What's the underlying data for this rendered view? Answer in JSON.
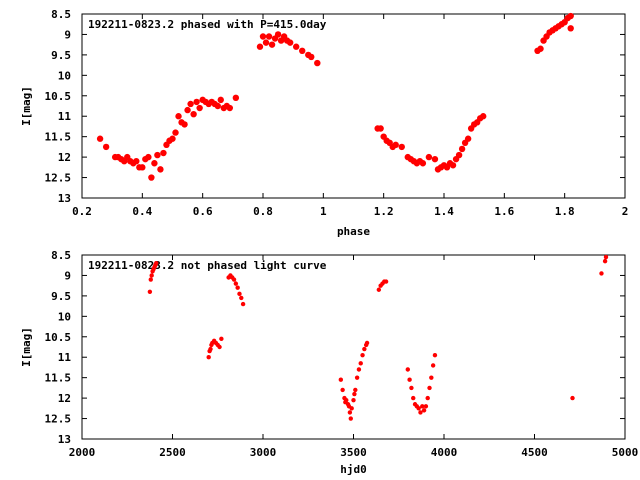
{
  "chart_data": [
    {
      "type": "scatter",
      "title": "192211-0823.2 phased with P=415.0day",
      "xlabel": "phase",
      "ylabel": "I[mag]",
      "xlim": [
        0.2,
        2.0
      ],
      "ylim": [
        8.5,
        13
      ],
      "y_inverted": true,
      "grid": false,
      "color": "#ff0000",
      "x_ticks": [
        "0.2",
        "0.4",
        "0.6",
        "0.8",
        "1",
        "1.2",
        "1.4",
        "1.6",
        "1.8",
        "2"
      ],
      "y_ticks": [
        "8.5",
        "9",
        "9.5",
        "10",
        "10.5",
        "11",
        "11.5",
        "12",
        "12.5",
        "13"
      ],
      "points": [
        [
          0.26,
          11.55
        ],
        [
          0.28,
          11.75
        ],
        [
          0.31,
          12.0
        ],
        [
          0.32,
          12.0
        ],
        [
          0.33,
          12.05
        ],
        [
          0.34,
          12.1
        ],
        [
          0.35,
          12.0
        ],
        [
          0.36,
          12.1
        ],
        [
          0.37,
          12.15
        ],
        [
          0.38,
          12.1
        ],
        [
          0.39,
          12.25
        ],
        [
          0.4,
          12.25
        ],
        [
          0.41,
          12.05
        ],
        [
          0.42,
          12.0
        ],
        [
          0.43,
          12.5
        ],
        [
          0.44,
          12.15
        ],
        [
          0.45,
          11.95
        ],
        [
          0.46,
          12.3
        ],
        [
          0.47,
          11.9
        ],
        [
          0.48,
          11.7
        ],
        [
          0.49,
          11.6
        ],
        [
          0.5,
          11.55
        ],
        [
          0.51,
          11.4
        ],
        [
          0.52,
          11.0
        ],
        [
          0.53,
          11.15
        ],
        [
          0.54,
          11.2
        ],
        [
          0.55,
          10.85
        ],
        [
          0.56,
          10.7
        ],
        [
          0.57,
          10.95
        ],
        [
          0.58,
          10.65
        ],
        [
          0.59,
          10.8
        ],
        [
          0.6,
          10.6
        ],
        [
          0.61,
          10.65
        ],
        [
          0.62,
          10.7
        ],
        [
          0.63,
          10.65
        ],
        [
          0.64,
          10.7
        ],
        [
          0.65,
          10.75
        ],
        [
          0.66,
          10.6
        ],
        [
          0.67,
          10.8
        ],
        [
          0.68,
          10.75
        ],
        [
          0.69,
          10.8
        ],
        [
          0.71,
          10.55
        ],
        [
          0.79,
          9.3
        ],
        [
          0.8,
          9.05
        ],
        [
          0.81,
          9.2
        ],
        [
          0.82,
          9.05
        ],
        [
          0.83,
          9.25
        ],
        [
          0.84,
          9.1
        ],
        [
          0.85,
          9.0
        ],
        [
          0.86,
          9.15
        ],
        [
          0.87,
          9.05
        ],
        [
          0.88,
          9.15
        ],
        [
          0.89,
          9.2
        ],
        [
          0.91,
          9.3
        ],
        [
          0.93,
          9.4
        ],
        [
          0.95,
          9.5
        ],
        [
          0.96,
          9.55
        ],
        [
          0.98,
          9.7
        ],
        [
          1.18,
          11.3
        ],
        [
          1.19,
          11.3
        ],
        [
          1.2,
          11.5
        ],
        [
          1.21,
          11.6
        ],
        [
          1.22,
          11.65
        ],
        [
          1.23,
          11.75
        ],
        [
          1.24,
          11.7
        ],
        [
          1.26,
          11.75
        ],
        [
          1.28,
          12.0
        ],
        [
          1.29,
          12.05
        ],
        [
          1.3,
          12.1
        ],
        [
          1.31,
          12.15
        ],
        [
          1.32,
          12.1
        ],
        [
          1.33,
          12.15
        ],
        [
          1.35,
          12.0
        ],
        [
          1.37,
          12.05
        ],
        [
          1.38,
          12.3
        ],
        [
          1.39,
          12.25
        ],
        [
          1.4,
          12.2
        ],
        [
          1.41,
          12.25
        ],
        [
          1.42,
          12.15
        ],
        [
          1.43,
          12.2
        ],
        [
          1.44,
          12.05
        ],
        [
          1.45,
          11.95
        ],
        [
          1.46,
          11.8
        ],
        [
          1.47,
          11.65
        ],
        [
          1.48,
          11.55
        ],
        [
          1.49,
          11.3
        ],
        [
          1.5,
          11.2
        ],
        [
          1.51,
          11.15
        ],
        [
          1.52,
          11.05
        ],
        [
          1.53,
          11.0
        ],
        [
          1.71,
          9.4
        ],
        [
          1.72,
          9.35
        ],
        [
          1.73,
          9.15
        ],
        [
          1.74,
          9.05
        ],
        [
          1.75,
          8.95
        ],
        [
          1.76,
          8.9
        ],
        [
          1.77,
          8.85
        ],
        [
          1.78,
          8.8
        ],
        [
          1.79,
          8.75
        ],
        [
          1.8,
          8.7
        ],
        [
          1.81,
          8.6
        ],
        [
          1.82,
          8.55
        ],
        [
          1.82,
          8.85
        ]
      ]
    },
    {
      "type": "scatter",
      "title": "192211-0823.2 not phased light curve",
      "xlabel": "hjd0",
      "ylabel": "I[mag]",
      "xlim": [
        2000,
        5000
      ],
      "ylim": [
        8.5,
        13
      ],
      "y_inverted": true,
      "grid": false,
      "color": "#ff0000",
      "x_ticks": [
        "2000",
        "2500",
        "3000",
        "3500",
        "4000",
        "4500",
        "5000"
      ],
      "y_ticks": [
        "8.5",
        "9",
        "9.5",
        "10",
        "10.5",
        "11",
        "11.5",
        "12",
        "12.5",
        "13"
      ],
      "points": [
        [
          2375,
          9.4
        ],
        [
          2380,
          9.1
        ],
        [
          2385,
          9.0
        ],
        [
          2390,
          8.9
        ],
        [
          2395,
          8.85
        ],
        [
          2400,
          8.8
        ],
        [
          2405,
          8.75
        ],
        [
          2410,
          8.7
        ],
        [
          2700,
          11.0
        ],
        [
          2705,
          10.85
        ],
        [
          2710,
          10.8
        ],
        [
          2715,
          10.7
        ],
        [
          2720,
          10.65
        ],
        [
          2730,
          10.6
        ],
        [
          2740,
          10.65
        ],
        [
          2750,
          10.7
        ],
        [
          2760,
          10.75
        ],
        [
          2770,
          10.55
        ],
        [
          2810,
          9.05
        ],
        [
          2820,
          9.0
        ],
        [
          2830,
          9.05
        ],
        [
          2840,
          9.1
        ],
        [
          2850,
          9.2
        ],
        [
          2860,
          9.3
        ],
        [
          2870,
          9.45
        ],
        [
          2880,
          9.55
        ],
        [
          2890,
          9.7
        ],
        [
          3430,
          11.55
        ],
        [
          3440,
          11.8
        ],
        [
          3450,
          12.0
        ],
        [
          3455,
          12.1
        ],
        [
          3460,
          12.05
        ],
        [
          3470,
          12.15
        ],
        [
          3475,
          12.2
        ],
        [
          3480,
          12.35
        ],
        [
          3485,
          12.5
        ],
        [
          3490,
          12.25
        ],
        [
          3500,
          12.05
        ],
        [
          3505,
          11.9
        ],
        [
          3510,
          11.8
        ],
        [
          3520,
          11.5
        ],
        [
          3530,
          11.3
        ],
        [
          3540,
          11.15
        ],
        [
          3550,
          10.95
        ],
        [
          3560,
          10.8
        ],
        [
          3570,
          10.7
        ],
        [
          3575,
          10.65
        ],
        [
          3640,
          9.35
        ],
        [
          3650,
          9.25
        ],
        [
          3660,
          9.2
        ],
        [
          3670,
          9.15
        ],
        [
          3680,
          9.15
        ],
        [
          3800,
          11.3
        ],
        [
          3810,
          11.55
        ],
        [
          3820,
          11.75
        ],
        [
          3830,
          12.0
        ],
        [
          3840,
          12.15
        ],
        [
          3850,
          12.2
        ],
        [
          3860,
          12.25
        ],
        [
          3870,
          12.35
        ],
        [
          3880,
          12.2
        ],
        [
          3890,
          12.3
        ],
        [
          3900,
          12.2
        ],
        [
          3910,
          12.0
        ],
        [
          3920,
          11.75
        ],
        [
          3930,
          11.5
        ],
        [
          3940,
          11.2
        ],
        [
          3950,
          10.95
        ],
        [
          4710,
          12.0
        ],
        [
          4870,
          8.95
        ],
        [
          4890,
          8.65
        ],
        [
          4895,
          8.55
        ]
      ]
    }
  ]
}
